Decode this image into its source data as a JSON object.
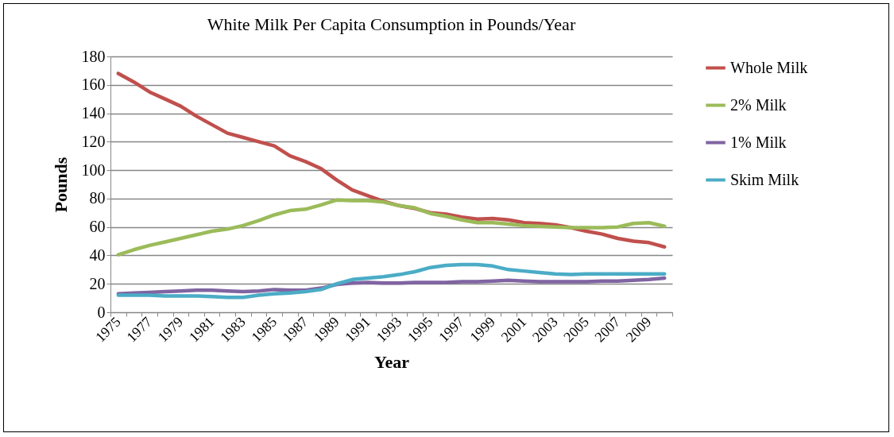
{
  "chart_data": {
    "type": "line",
    "title": "White Milk Per Capita Consumption in Pounds/Year",
    "xlabel": "Year",
    "ylabel": "Pounds",
    "categories": [
      "1975",
      null,
      "1977",
      null,
      "1979",
      null,
      "1981",
      null,
      "1983",
      null,
      "1985",
      null,
      "1987",
      null,
      "1989",
      null,
      "1991",
      null,
      "1993",
      null,
      "1995",
      null,
      "1997",
      null,
      "1999",
      null,
      "2001",
      null,
      "2003",
      null,
      "2005",
      null,
      "2007",
      null,
      "2009",
      null
    ],
    "series": [
      {
        "name": "Whole Milk",
        "color": "#c0504d",
        "values": [
          168,
          162,
          155,
          150,
          145,
          138,
          132,
          126,
          123,
          120,
          117,
          110,
          106,
          101,
          93,
          86,
          82,
          78,
          75,
          73,
          70,
          69,
          67,
          65.5,
          66,
          65,
          63,
          62.5,
          61.5,
          59.5,
          57,
          55,
          52,
          50,
          49,
          46
        ]
      },
      {
        "name": "2% Milk",
        "color": "#9bbb59",
        "values": [
          40.5,
          44,
          47,
          49.5,
          52,
          54.5,
          57,
          58.5,
          61,
          64.5,
          68.5,
          71.5,
          72.5,
          75.5,
          79,
          78.5,
          78.5,
          77.5,
          75,
          73.5,
          69.5,
          67.5,
          65,
          63,
          63,
          62,
          61,
          60.5,
          60,
          59.5,
          59.5,
          59.5,
          60,
          62.5,
          63,
          60.5
        ]
      },
      {
        "name": "1% Milk",
        "color": "#8064a2",
        "values": [
          13,
          13.5,
          14,
          14.5,
          15,
          15.5,
          15.5,
          15,
          14.5,
          15,
          16,
          15.5,
          15.5,
          17,
          19.5,
          20.5,
          21,
          20.5,
          20.5,
          21,
          21,
          21,
          21.5,
          21.5,
          22,
          22.5,
          22,
          21.5,
          21.5,
          21.5,
          21.5,
          22,
          22,
          22.5,
          23,
          24
        ]
      },
      {
        "name": "Skim Milk",
        "color": "#4bacc6",
        "values": [
          12,
          12,
          12,
          11.5,
          11.5,
          11.5,
          11,
          10.5,
          10.5,
          12,
          13,
          13.5,
          14.5,
          16,
          20,
          23,
          24,
          25,
          26.5,
          28.5,
          31.5,
          33,
          33.5,
          33.5,
          32.5,
          30,
          29,
          28,
          27,
          26.5,
          27,
          27,
          27,
          27,
          27,
          27
        ]
      }
    ],
    "ylim": [
      0,
      180
    ],
    "yticks": [
      0,
      20,
      40,
      60,
      80,
      100,
      120,
      140,
      160,
      180
    ],
    "grid": "y",
    "legend": "right",
    "line_style": "solid",
    "marker": "none"
  }
}
